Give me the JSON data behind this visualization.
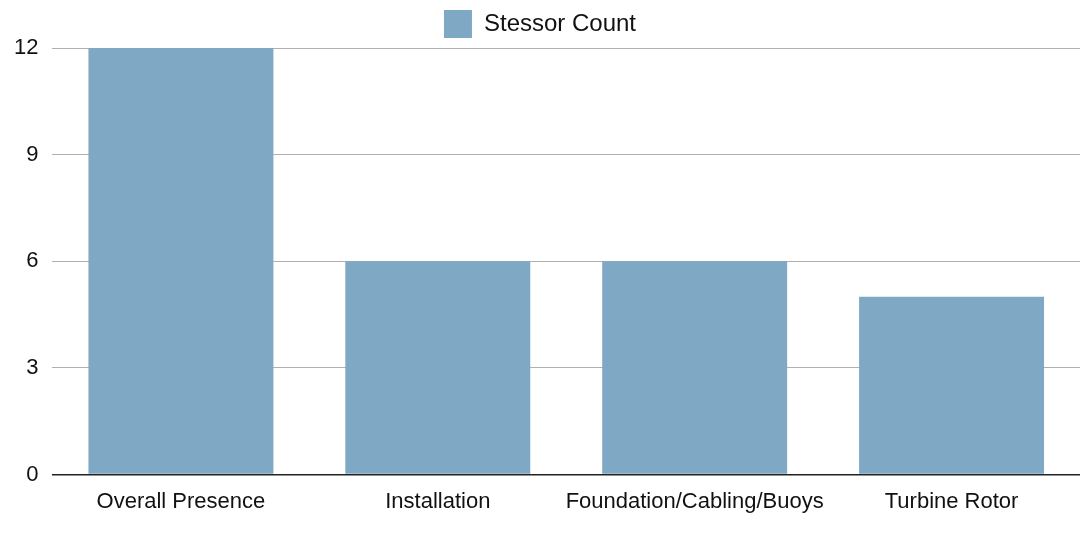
{
  "chart_data": {
    "type": "bar",
    "categories": [
      "Overall Presence",
      "Installation",
      "Foundation/Cabling/Buoys",
      "Turbine Rotor"
    ],
    "series": [
      {
        "name": "Stessor Count",
        "color": "#7fa8c4",
        "values": [
          12,
          6,
          6,
          5
        ]
      }
    ],
    "ylim": [
      0,
      12
    ],
    "yticks": [
      0,
      3,
      6,
      9,
      12
    ],
    "grid": "y",
    "legend": "top"
  }
}
